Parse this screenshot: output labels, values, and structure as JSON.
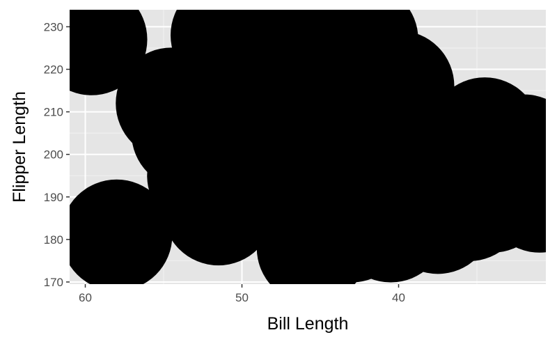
{
  "colors": {
    "panel_background": "#e5e5e5",
    "grid_major": "#ffffff",
    "grid_minor": "#f2f2f2",
    "point_fill": "#000000",
    "tick_text": "#4d4d4d",
    "axis_text": "#000000"
  },
  "chart_data": {
    "type": "scatter",
    "title": "",
    "xlabel": "Bill Length",
    "ylabel": "Flipper Length",
    "x_reversed": true,
    "xlim": [
      61,
      30.6
    ],
    "ylim": [
      169.5,
      234
    ],
    "x_ticks": [
      60,
      50,
      40
    ],
    "y_ticks": [
      170,
      180,
      190,
      200,
      210,
      220,
      230
    ],
    "grid": true,
    "legend": "none",
    "point_size": "very large (overlapping, covering most of the panel)",
    "points": [
      {
        "x": 59.6,
        "y": 227
      },
      {
        "x": 58.0,
        "y": 181
      },
      {
        "x": 54.5,
        "y": 212
      },
      {
        "x": 53.5,
        "y": 205
      },
      {
        "x": 52.5,
        "y": 195
      },
      {
        "x": 51.5,
        "y": 187
      },
      {
        "x": 51.0,
        "y": 228
      },
      {
        "x": 50.5,
        "y": 215
      },
      {
        "x": 49.5,
        "y": 205
      },
      {
        "x": 48.5,
        "y": 228
      },
      {
        "x": 47.5,
        "y": 218
      },
      {
        "x": 46.8,
        "y": 198
      },
      {
        "x": 46.0,
        "y": 190
      },
      {
        "x": 45.5,
        "y": 178
      },
      {
        "x": 45.0,
        "y": 223
      },
      {
        "x": 44.5,
        "y": 210
      },
      {
        "x": 43.5,
        "y": 195
      },
      {
        "x": 43.0,
        "y": 183
      },
      {
        "x": 42.3,
        "y": 227
      },
      {
        "x": 41.5,
        "y": 205
      },
      {
        "x": 40.8,
        "y": 192
      },
      {
        "x": 40.5,
        "y": 183
      },
      {
        "x": 40.0,
        "y": 216
      },
      {
        "x": 39.5,
        "y": 200
      },
      {
        "x": 39.0,
        "y": 186
      },
      {
        "x": 38.0,
        "y": 196
      },
      {
        "x": 37.5,
        "y": 185
      },
      {
        "x": 36.5,
        "y": 198
      },
      {
        "x": 35.5,
        "y": 188
      },
      {
        "x": 34.5,
        "y": 205
      },
      {
        "x": 34.0,
        "y": 190
      },
      {
        "x": 33.0,
        "y": 196
      },
      {
        "x": 32.0,
        "y": 201
      },
      {
        "x": 31.0,
        "y": 190
      }
    ]
  }
}
